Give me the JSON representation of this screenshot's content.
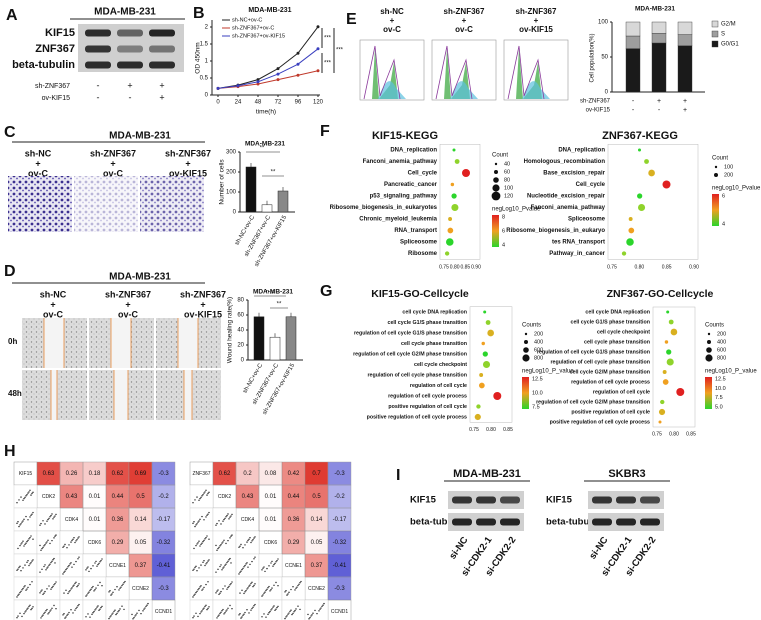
{
  "A": {
    "label": "A",
    "title": "MDA-MB-231",
    "rows": [
      "KIF15",
      "ZNF367",
      "beta-tubulin"
    ],
    "conditions": [
      {
        "name": "sh-ZNF367",
        "signs": [
          "-",
          "+",
          "+"
        ]
      },
      {
        "name": "ov-KIF15",
        "signs": [
          "-",
          "-",
          "+"
        ]
      }
    ]
  },
  "B": {
    "label": "B",
    "title": "MDA-MB-231",
    "legend": [
      "sh-NC+ov-C",
      "sh-ZNF367+ov-C",
      "sh-ZNF367+ov-KIF15"
    ],
    "ylabel": "OD 450nm",
    "xlabel": "time(h)",
    "xticks": [
      "0",
      "24",
      "48",
      "72",
      "96",
      "120"
    ],
    "yticks": [
      "0",
      "0.5",
      "1",
      "1.5",
      "2"
    ],
    "sig": [
      "***",
      "***",
      "***"
    ]
  },
  "E": {
    "label": "E",
    "groups": [
      [
        "sh-NC",
        "+",
        "ov-C"
      ],
      [
        "sh-ZNF367",
        "+",
        "ov-C"
      ],
      [
        "sh-ZNF367",
        "+",
        "ov-KIF15"
      ]
    ],
    "chart_title": "MDA-MB-231",
    "ylabel": "Cell population(%)",
    "yticks": [
      "0",
      "50",
      "100"
    ],
    "legend": [
      "G2/M",
      "S",
      "G0/G1"
    ],
    "conditions": [
      {
        "name": "sh-ZNF367",
        "signs": [
          "-",
          "+",
          "+"
        ]
      },
      {
        "name": "ov-KIF15",
        "signs": [
          "-",
          "-",
          "+"
        ]
      }
    ]
  },
  "C": {
    "label": "C",
    "title": "MDA-MB-231",
    "groups": [
      [
        "sh-NC",
        "+",
        "ov-C"
      ],
      [
        "sh-ZNF367",
        "+",
        "ov-C"
      ],
      [
        "sh-ZNF367",
        "+",
        "ov-KIF15"
      ]
    ],
    "chart_title": "MDA-MB-231",
    "ylabel": "Number of cells",
    "yticks": [
      "0",
      "100",
      "200",
      "300"
    ],
    "xlabels": [
      "sh-NC+ov-C",
      "sh-ZNF367+ov-C",
      "sh-ZNF367+ov-KIF15"
    ],
    "sig": [
      "**",
      "**"
    ]
  },
  "D": {
    "label": "D",
    "title": "MDA-MB-231",
    "groups": [
      [
        "sh-NC",
        "+",
        "ov-C"
      ],
      [
        "sh-ZNF367",
        "+",
        "ov-C"
      ],
      [
        "sh-ZNF367",
        "+",
        "ov-KIF15"
      ]
    ],
    "rows": [
      "0h",
      "48h"
    ],
    "chart_title": "MDA-MB-231",
    "ylabel": "Wound healing rate(%)",
    "yticks": [
      "0",
      "20",
      "40",
      "60",
      "80"
    ],
    "xlabels": [
      "sh-NC+ov-C",
      "sh-ZNF367+ov-C",
      "sh-ZNF367+ov-KIF15"
    ],
    "sig": [
      "n.s",
      "**"
    ]
  },
  "F": {
    "label": "F",
    "plots": [
      {
        "title": "KIF15-KEGG",
        "terms": [
          "DNA_replication",
          "Fanconi_anemia_pathway",
          "Cell_cycle",
          "Pancreatic_cancer",
          "p53_signaling_pathway",
          "Ribosome_biogenesis_in_eukaryotes",
          "Chronic_myeloid_leukemia",
          "RNA_transport",
          "Spliceosome",
          "Ribosome"
        ],
        "xticks": [
          "0.75",
          "0.80",
          "0.85",
          "0.90"
        ],
        "size_title": "Count",
        "sizes": [
          "40",
          "60",
          "80",
          "100",
          "120"
        ],
        "color_title": "negLog10_Pvalue",
        "colors": [
          "4",
          "6",
          "8"
        ]
      },
      {
        "title": "ZNF367-KEGG",
        "terms": [
          "DNA_replication",
          "Homologous_recombination",
          "Base_excision_repair",
          "Cell_cycle",
          "Nucleotide_excision_repair",
          "Fanconi_anemia_pathway",
          "Spliceosome",
          "Ribosome_biogenesis_in_eukaryo",
          "tes RNA_transport",
          "Pathway_in_cancer"
        ],
        "xticks": [
          "0.75",
          "0.80",
          "0.85",
          "0.90"
        ],
        "size_title": "Count",
        "sizes": [
          "100",
          "200"
        ],
        "color_title": "negLog10_Pvalue",
        "colors": [
          "4",
          "6"
        ]
      }
    ]
  },
  "G": {
    "label": "G",
    "plots": [
      {
        "title": "KIF15-GO-Cellcycle",
        "terms": [
          "cell cycle DNA replication",
          "cell cycle G1/S phase transition",
          "regulation of cell cycle G1/S phase transition",
          "cell cycle phase transition",
          "regulation of cell cycle G2/M phase transition",
          "cell cycle checkpoint",
          "regulation of cell cycle phase transition",
          "regulation of cell cycle",
          "regulation of cell cycle process",
          "positive regulation of cell cycle",
          "positive regulation of cell cycle process"
        ],
        "xticks": [
          "0.75",
          "0.80",
          "0.85"
        ],
        "size_title": "Counts",
        "sizes": [
          "200",
          "400",
          "600",
          "800"
        ],
        "color_title": "negLog10_P_value",
        "colors": [
          "7.5",
          "10.0",
          "12.5"
        ]
      },
      {
        "title": "ZNF367-GO-Cellcycle",
        "terms": [
          "cell cycle DNA replication",
          "cell cycle G1/S phase transition",
          "cell cycle checkpoint",
          "cell cycle phase transition",
          "regulation of cell cycle G1/S phase transition",
          "regulation of cell cycle phase transition",
          "cell cycle G2/M phase transition",
          "regulation of cell cycle process",
          "regulation of cell cycle",
          "regulation of cell cycle G2/M phase transition",
          "positive regulation of cell cycle",
          "positive regulation of cell cycle process"
        ],
        "xticks": [
          "0.75",
          "0.80",
          "0.85"
        ],
        "size_title": "Counts",
        "sizes": [
          "200",
          "400",
          "600",
          "800"
        ],
        "color_title": "negLog10_P_value",
        "colors": [
          "5.0",
          "7.5",
          "10.0",
          "12.5"
        ]
      }
    ]
  },
  "H": {
    "label": "H",
    "matrices": [
      {
        "genes": [
          "KIF15",
          "CDK2",
          "CDK4",
          "CDK6",
          "CCNE1",
          "CCNE2",
          "CCND1"
        ],
        "values": [
          [
            "0.63",
            "0.26",
            "0.18",
            "0.62",
            "0.69",
            "-0.3"
          ],
          [
            "0.43",
            "0.01",
            "0.44",
            "0.5",
            "-0.2"
          ],
          [
            "0.01",
            "0.36",
            "0.14",
            "-0.17"
          ],
          [
            "0.29",
            "0.05",
            "-0.32"
          ],
          [
            "0.37",
            "-0.41"
          ],
          [
            "-0.3"
          ]
        ]
      },
      {
        "genes": [
          "ZNF367",
          "CDK2",
          "CDK4",
          "CDK6",
          "CCNE1",
          "CCNE2",
          "CCND1"
        ],
        "values": [
          [
            "0.62",
            "0.2",
            "0.08",
            "0.42",
            "0.7",
            "-0.3"
          ],
          [
            "0.43",
            "0.01",
            "0.44",
            "0.5",
            "-0.2"
          ],
          [
            "0.01",
            "0.36",
            "0.14",
            "-0.17"
          ],
          [
            "0.29",
            "0.05",
            "-0.32"
          ],
          [
            "0.37",
            "-0.41"
          ],
          [
            "-0.3"
          ]
        ]
      }
    ]
  },
  "I": {
    "label": "I",
    "blots": [
      {
        "title": "MDA-MB-231",
        "rows": [
          "KIF15",
          "beta-tubulin"
        ],
        "lanes": [
          "si-NC",
          "si-CDK2-1",
          "si-CDK2-2"
        ]
      },
      {
        "title": "SKBR3",
        "rows": [
          "KIF15",
          "beta-tubulin"
        ],
        "lanes": [
          "si-NC",
          "si-CDK2-1",
          "si-CDK2-2"
        ]
      }
    ]
  }
}
